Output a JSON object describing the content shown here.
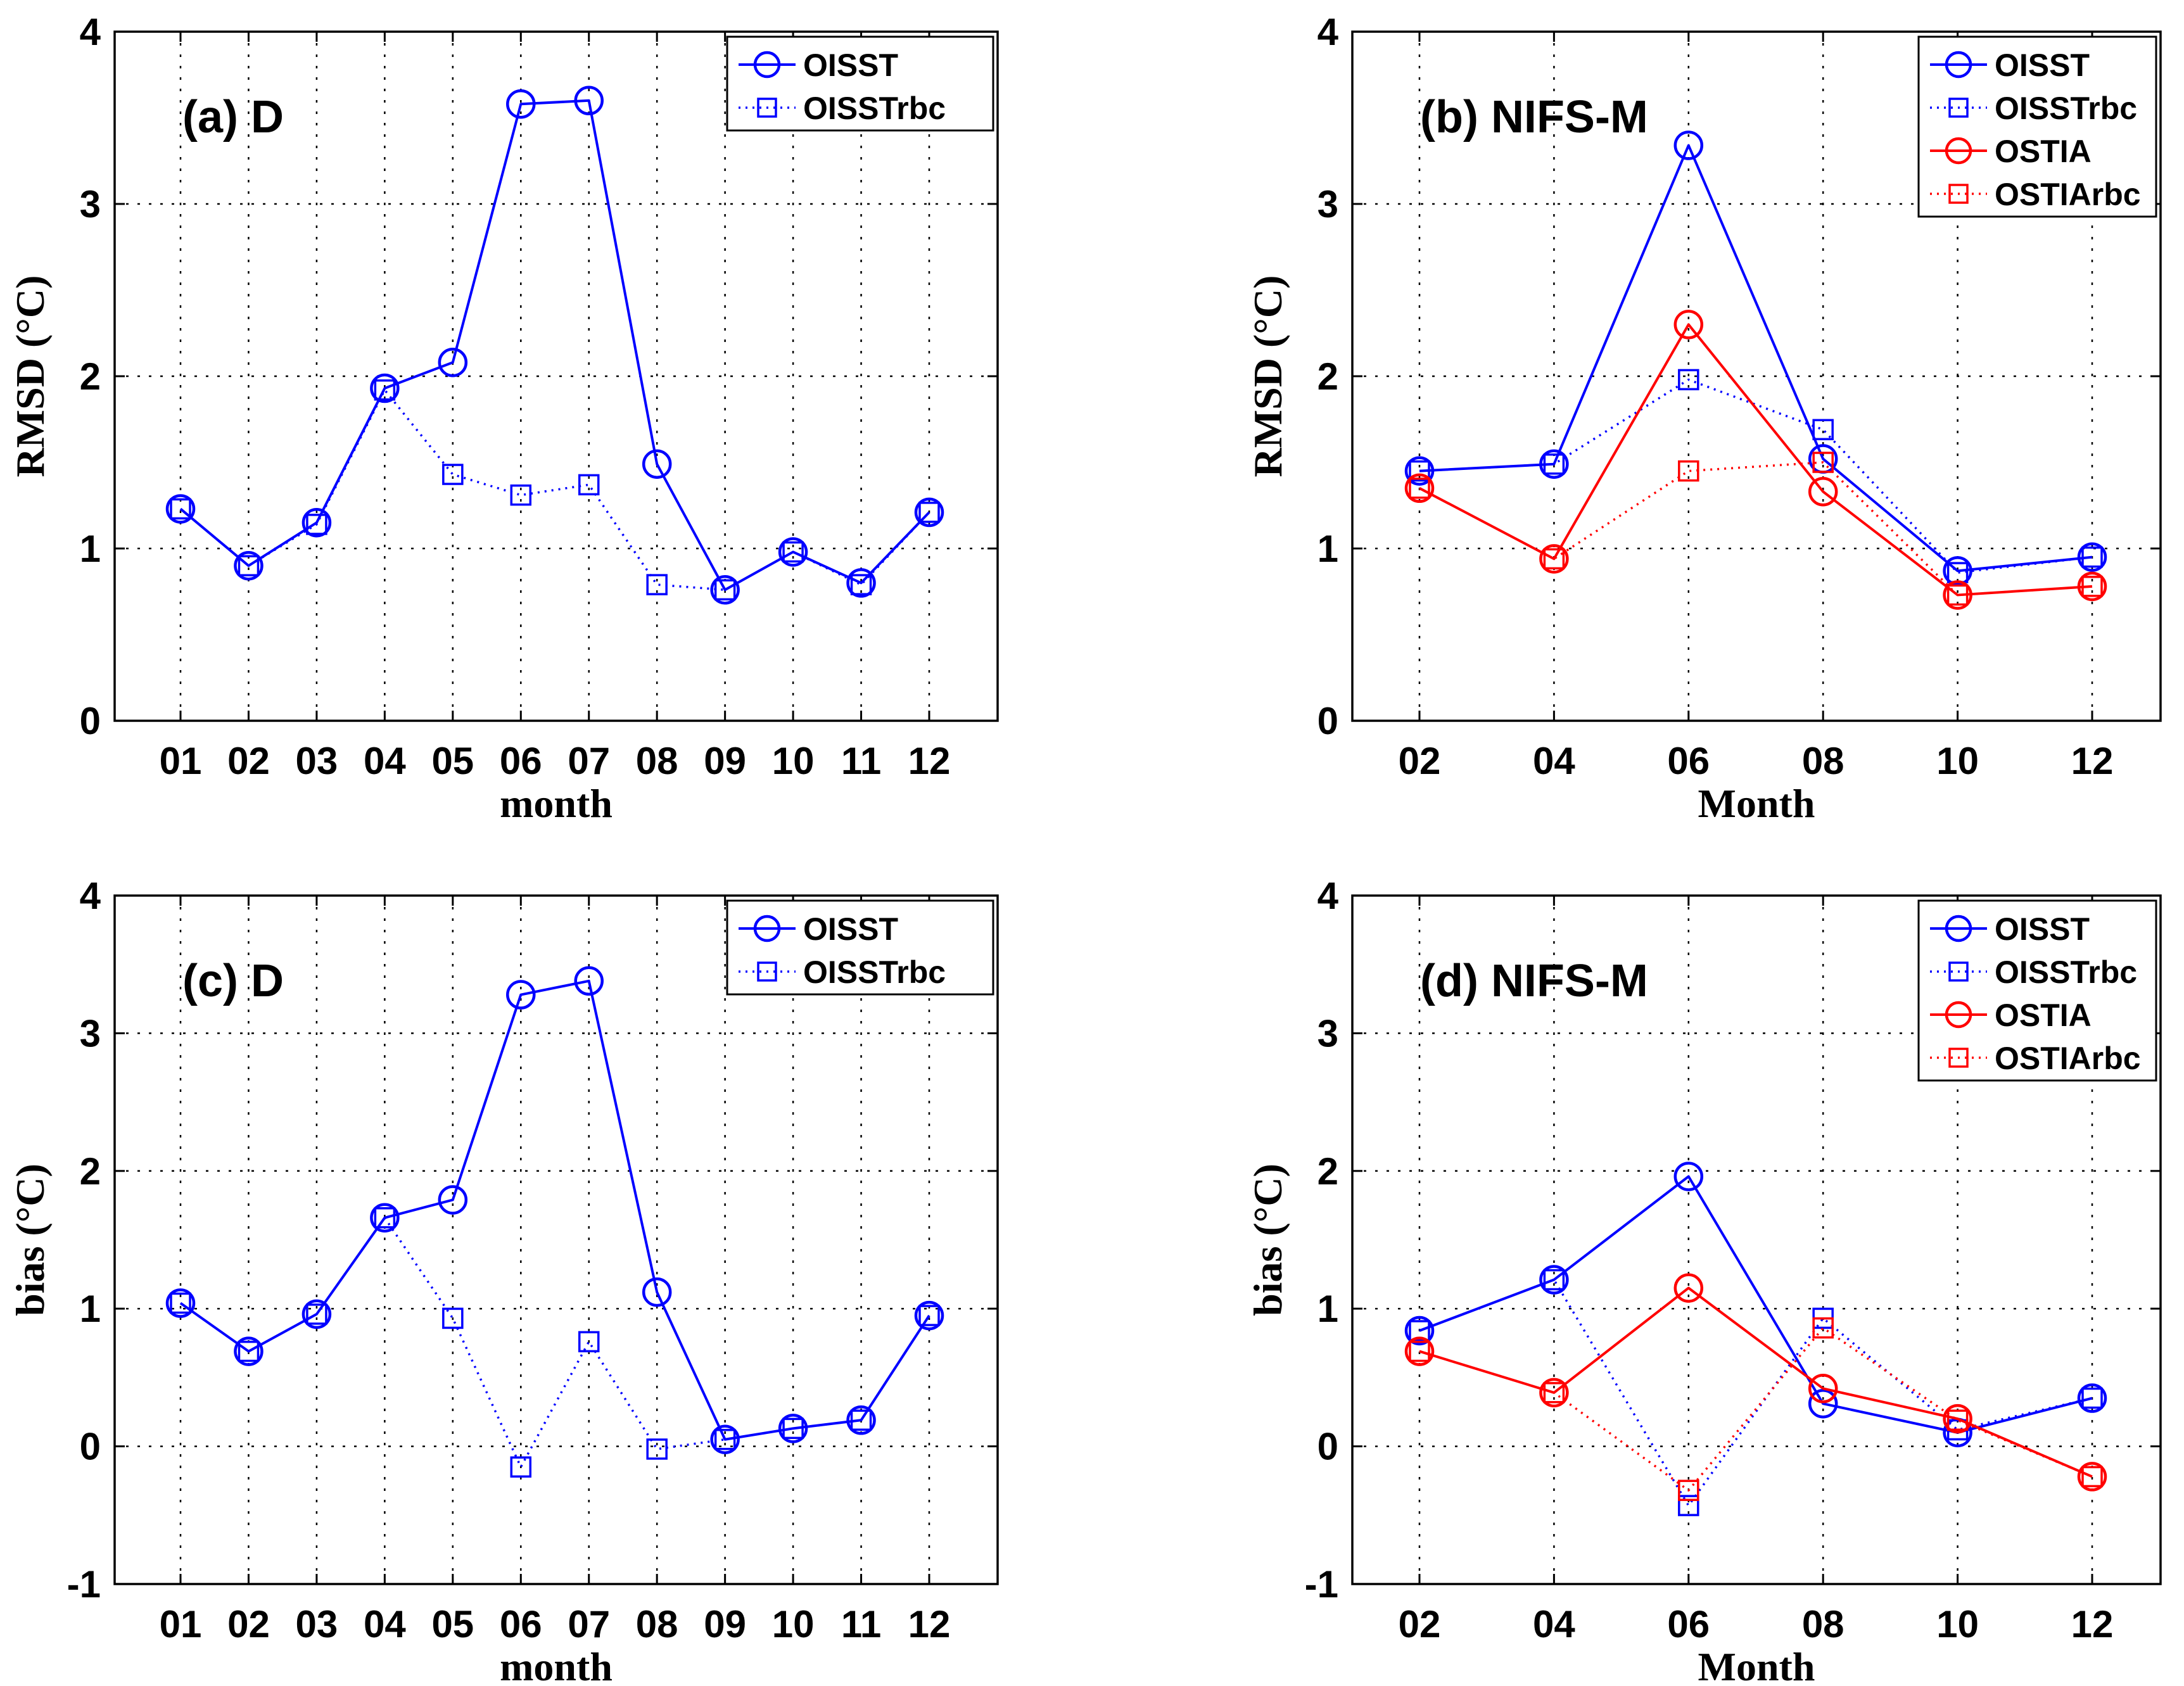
{
  "chart_data": [
    {
      "id": "a",
      "type": "line",
      "title": "(a) D",
      "xlabel": "month",
      "ylabel": "RMSD (°C)",
      "categories": [
        "01",
        "02",
        "03",
        "04",
        "05",
        "06",
        "07",
        "08",
        "09",
        "10",
        "11",
        "12"
      ],
      "ylim": [
        0,
        4
      ],
      "yticks": [
        "0",
        "1",
        "2",
        "3",
        "4"
      ],
      "grid": true,
      "legend_position": "top-right",
      "series": [
        {
          "name": "OISST",
          "color": "#0000ff",
          "marker": "circle",
          "line": "solid",
          "values": [
            1.23,
            0.9,
            1.15,
            1.93,
            2.08,
            3.58,
            3.6,
            1.49,
            0.76,
            0.98,
            0.8,
            1.21
          ]
        },
        {
          "name": "OISSTrbc",
          "color": "#0000ff",
          "marker": "square",
          "line": "dotted",
          "values": [
            1.23,
            0.9,
            1.14,
            1.92,
            1.43,
            1.31,
            1.37,
            0.79,
            0.76,
            0.98,
            0.79,
            1.21
          ]
        }
      ]
    },
    {
      "id": "b",
      "type": "line",
      "title": "(b) NIFS-M",
      "xlabel": "Month",
      "ylabel": "RMSD (°C)",
      "categories": [
        "02",
        "04",
        "06",
        "08",
        "10",
        "12"
      ],
      "ylim": [
        0,
        4
      ],
      "yticks": [
        "0",
        "1",
        "2",
        "3",
        "4"
      ],
      "grid": true,
      "legend_position": "top-right",
      "series": [
        {
          "name": "OISST",
          "color": "#0000ff",
          "marker": "circle",
          "line": "solid",
          "values": [
            1.45,
            1.49,
            3.34,
            1.52,
            0.87,
            0.95
          ]
        },
        {
          "name": "OISSTrbc",
          "color": "#0000ff",
          "marker": "square",
          "line": "dotted",
          "values": [
            1.45,
            1.49,
            1.98,
            1.69,
            0.86,
            0.95
          ]
        },
        {
          "name": "OSTIA",
          "color": "#ff0000",
          "marker": "circle",
          "line": "solid",
          "values": [
            1.35,
            0.94,
            2.3,
            1.33,
            0.73,
            0.78
          ]
        },
        {
          "name": "OSTIArbc",
          "color": "#ff0000",
          "marker": "square",
          "line": "dotted",
          "values": [
            1.35,
            0.94,
            1.45,
            1.5,
            0.73,
            0.78
          ]
        }
      ]
    },
    {
      "id": "c",
      "type": "line",
      "title": "(c) D",
      "xlabel": "month",
      "ylabel": "bias (°C)",
      "categories": [
        "01",
        "02",
        "03",
        "04",
        "05",
        "06",
        "07",
        "08",
        "09",
        "10",
        "11",
        "12"
      ],
      "ylim": [
        -1,
        4
      ],
      "yticks": [
        "-1",
        "0",
        "1",
        "2",
        "3",
        "4"
      ],
      "grid": true,
      "legend_position": "top-right",
      "series": [
        {
          "name": "OISST",
          "color": "#0000ff",
          "marker": "circle",
          "line": "solid",
          "values": [
            1.04,
            0.69,
            0.96,
            1.66,
            1.79,
            3.28,
            3.38,
            1.12,
            0.05,
            0.13,
            0.19,
            0.95
          ]
        },
        {
          "name": "OISSTrbc",
          "color": "#0000ff",
          "marker": "square",
          "line": "dotted",
          "values": [
            1.04,
            0.69,
            0.96,
            1.66,
            0.93,
            -0.15,
            0.76,
            -0.02,
            0.05,
            0.13,
            0.19,
            0.95
          ]
        }
      ]
    },
    {
      "id": "d",
      "type": "line",
      "title": "(d) NIFS-M",
      "xlabel": "Month",
      "ylabel": "bias (°C)",
      "categories": [
        "02",
        "04",
        "06",
        "08",
        "10",
        "12"
      ],
      "ylim": [
        -1,
        4
      ],
      "yticks": [
        "-1",
        "0",
        "1",
        "2",
        "3",
        "4"
      ],
      "grid": true,
      "legend_position": "top-right",
      "series": [
        {
          "name": "OISST",
          "color": "#0000ff",
          "marker": "circle",
          "line": "solid",
          "values": [
            0.84,
            1.21,
            1.96,
            0.31,
            0.1,
            0.35
          ]
        },
        {
          "name": "OISSTrbc",
          "color": "#0000ff",
          "marker": "square",
          "line": "dotted",
          "values": [
            0.84,
            1.21,
            -0.43,
            0.93,
            0.12,
            0.35
          ]
        },
        {
          "name": "OSTIA",
          "color": "#ff0000",
          "marker": "circle",
          "line": "solid",
          "values": [
            0.69,
            0.39,
            1.15,
            0.42,
            0.2,
            -0.22
          ]
        },
        {
          "name": "OSTIArbc",
          "color": "#ff0000",
          "marker": "square",
          "line": "dotted",
          "values": [
            0.69,
            0.39,
            -0.32,
            0.86,
            0.19,
            -0.22
          ]
        }
      ]
    }
  ]
}
